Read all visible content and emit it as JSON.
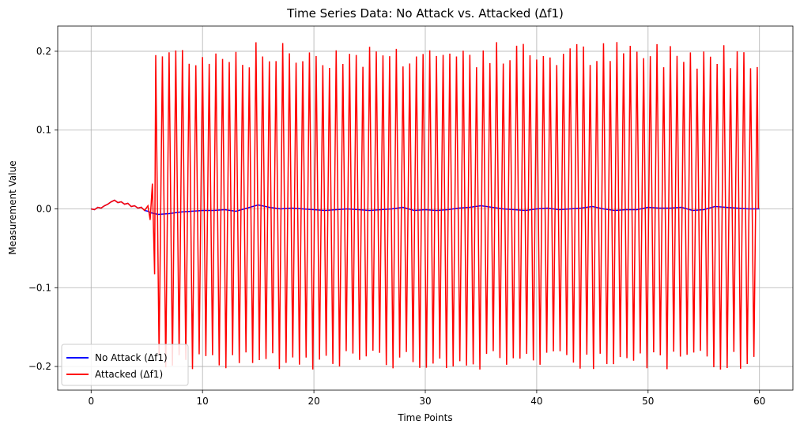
{
  "chart_data": {
    "type": "line",
    "title": "Time Series Data: No Attack vs. Attacked (Δf1)",
    "xlabel": "Time Points",
    "ylabel": "Measurement Value",
    "xlim": [
      -3,
      63
    ],
    "ylim": [
      -0.23,
      0.232
    ],
    "x_ticks": [
      0,
      10,
      20,
      30,
      40,
      50,
      60
    ],
    "x_tick_labels": [
      "0",
      "10",
      "20",
      "30",
      "40",
      "50",
      "60"
    ],
    "y_ticks": [
      -0.2,
      -0.1,
      0.0,
      0.1,
      0.2
    ],
    "y_tick_labels": [
      "−0.2",
      "−0.1",
      "0.0",
      "0.1",
      "0.2"
    ],
    "grid": true,
    "legend_position": "lower-left",
    "series": [
      {
        "name": "No Attack (Δf1)",
        "color": "#0000ff",
        "x": [
          0,
          0.3,
          0.6,
          0.9,
          1.2,
          1.5,
          1.8,
          2.1,
          2.4,
          2.7,
          3.0,
          3.3,
          3.6,
          3.9,
          4.2,
          4.5,
          4.8,
          5.1,
          5.4,
          5.7,
          6.0,
          7,
          8,
          9,
          10,
          11,
          12,
          13,
          14,
          15,
          16,
          17,
          18,
          19,
          20,
          21,
          22,
          23,
          24,
          25,
          26,
          27,
          28,
          29,
          30,
          31,
          32,
          33,
          34,
          35,
          36,
          37,
          38,
          39,
          40,
          41,
          42,
          43,
          44,
          45,
          46,
          47,
          48,
          49,
          50,
          51,
          52,
          53,
          54,
          55,
          56,
          57,
          58,
          59,
          60
        ],
        "y": [
          0.0,
          -0.001,
          0.002,
          0.001,
          0.004,
          0.006,
          0.009,
          0.011,
          0.008,
          0.009,
          0.006,
          0.007,
          0.003,
          0.004,
          0.001,
          0.002,
          -0.002,
          -0.003,
          -0.005,
          -0.006,
          -0.007,
          -0.006,
          -0.004,
          -0.003,
          -0.002,
          -0.002,
          -0.001,
          -0.003,
          0.001,
          0.005,
          0.002,
          0.0,
          0.001,
          0.0,
          -0.001,
          -0.002,
          -0.001,
          0.0,
          -0.001,
          -0.002,
          -0.001,
          0.0,
          0.002,
          -0.002,
          -0.001,
          -0.002,
          -0.001,
          0.001,
          0.002,
          0.004,
          0.002,
          0.0,
          -0.001,
          -0.002,
          0.0,
          0.001,
          -0.001,
          0.0,
          0.001,
          0.003,
          0.0,
          -0.002,
          -0.001,
          -0.001,
          0.002,
          0.001,
          0.001,
          0.002,
          -0.002,
          -0.001,
          0.003,
          0.002,
          0.001,
          0.0,
          0.0
        ]
      },
      {
        "name": "Attacked (Δf1)",
        "color": "#ff0000",
        "x": [
          0,
          0.3,
          0.6,
          0.9,
          1.2,
          1.5,
          1.8,
          2.1,
          2.4,
          2.7,
          3.0,
          3.3,
          3.6,
          3.9,
          4.2,
          4.5,
          4.8,
          5.1,
          5.3,
          5.5,
          5.7
        ],
        "y": [
          0.0,
          -0.001,
          0.002,
          0.001,
          0.004,
          0.006,
          0.009,
          0.011,
          0.008,
          0.009,
          0.006,
          0.007,
          0.003,
          0.004,
          0.001,
          0.002,
          -0.002,
          0.004,
          -0.014,
          0.032,
          -0.083
        ],
        "oscillation": {
          "start": 5.8,
          "end": 59.9,
          "period": 0.6,
          "peak_max": 0.213,
          "peak_min": 0.178,
          "trough_min": -0.204,
          "trough_max": -0.18,
          "final_value": 0.0
        }
      }
    ]
  }
}
